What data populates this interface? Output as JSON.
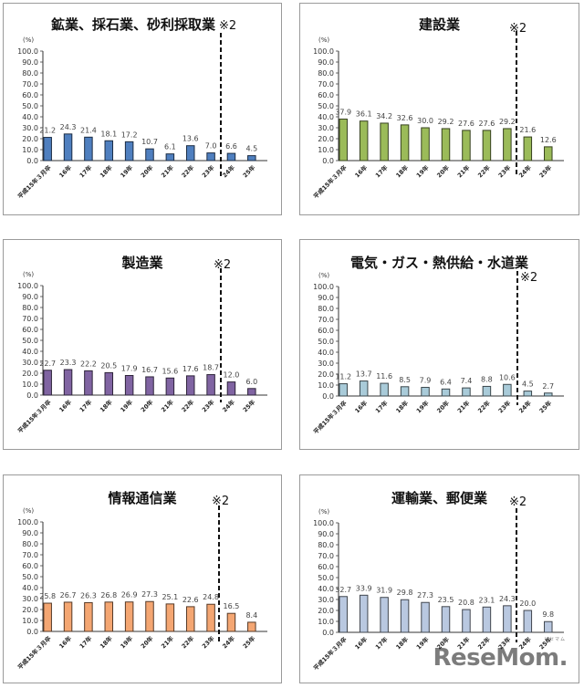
{
  "page": {
    "watermark": "ReseMom.",
    "watermark_ruby": "リセマム"
  },
  "chart_data": [
    {
      "id": "mining",
      "type": "bar",
      "title": "鉱業、採石業、砂利採取業",
      "annotation": "※2",
      "ylabel": "(%)",
      "xlabel": "",
      "ylim": [
        0,
        100
      ],
      "yticks": [
        "0.0",
        "10.0",
        "20.0",
        "30.0",
        "40.0",
        "50.0",
        "60.0",
        "70.0",
        "80.0",
        "90.0",
        "100.0"
      ],
      "categories": [
        "平成15年３月卒",
        "16年",
        "17年",
        "18年",
        "19年",
        "20年",
        "21年",
        "22年",
        "23年",
        "24年",
        "25年"
      ],
      "values": [
        21.2,
        24.3,
        21.4,
        18.1,
        17.2,
        10.7,
        6.1,
        13.6,
        7.0,
        6.6,
        4.5
      ],
      "labels": [
        "21.2",
        "24.3",
        "21.4",
        "18.1",
        "17.2",
        "10.7",
        "6.1",
        "13.6",
        "7.0",
        "6.6",
        "4.5"
      ],
      "divider_after_index": 8,
      "bar_color": "#4f7fbf",
      "grid": false,
      "legend": "none"
    },
    {
      "id": "construction",
      "type": "bar",
      "title": "建設業",
      "annotation": "※2",
      "ylabel": "(%)",
      "xlabel": "",
      "ylim": [
        0,
        100
      ],
      "yticks": [
        "0.0",
        "10.0",
        "20.0",
        "30.0",
        "40.0",
        "50.0",
        "60.0",
        "70.0",
        "80.0",
        "90.0",
        "100.0"
      ],
      "categories": [
        "平成15年３月卒",
        "16年",
        "17年",
        "18年",
        "19年",
        "20年",
        "21年",
        "22年",
        "23年",
        "24年",
        "25年"
      ],
      "values": [
        37.9,
        36.1,
        34.2,
        32.6,
        30.0,
        29.2,
        27.6,
        27.6,
        29.2,
        21.6,
        12.6
      ],
      "labels": [
        "37.9",
        "36.1",
        "34.2",
        "32.6",
        "30.0",
        "29.2",
        "27.6",
        "27.6",
        "29.2",
        "21.6",
        "12.6"
      ],
      "divider_after_index": 8,
      "bar_color": "#9bbb59",
      "grid": false,
      "legend": "none"
    },
    {
      "id": "manufacturing",
      "type": "bar",
      "title": "製造業",
      "annotation": "※2",
      "ylabel": "(%)",
      "xlabel": "",
      "ylim": [
        0,
        100
      ],
      "yticks": [
        "0.0",
        "10.0",
        "20.0",
        "30.0",
        "40.0",
        "50.0",
        "60.0",
        "70.0",
        "80.0",
        "90.0",
        "100.0"
      ],
      "categories": [
        "平成15年３月卒",
        "16年",
        "17年",
        "18年",
        "19年",
        "20年",
        "21年",
        "22年",
        "23年",
        "24年",
        "25年"
      ],
      "values": [
        22.7,
        23.3,
        22.2,
        20.5,
        17.9,
        16.7,
        15.6,
        17.6,
        18.7,
        12.0,
        6.0
      ],
      "labels": [
        "22.7",
        "23.3",
        "22.2",
        "20.5",
        "17.9",
        "16.7",
        "15.6",
        "17.6",
        "18.7",
        "12.0",
        "6.0"
      ],
      "divider_after_index": 8,
      "bar_color": "#8064a2",
      "grid": false,
      "legend": "none"
    },
    {
      "id": "utilities",
      "type": "bar",
      "title": "電気・ガス・熱供給・水道業",
      "annotation": "※2",
      "ylabel": "(%)",
      "xlabel": "",
      "ylim": [
        0,
        100
      ],
      "yticks": [
        "0.0",
        "10.0",
        "20.0",
        "30.0",
        "40.0",
        "50.0",
        "60.0",
        "70.0",
        "80.0",
        "90.0",
        "100.0"
      ],
      "categories": [
        "平成15年３月卒",
        "16年",
        "17年",
        "18年",
        "19年",
        "20年",
        "21年",
        "22年",
        "23年",
        "24年",
        "25年"
      ],
      "values": [
        11.2,
        13.7,
        11.6,
        8.5,
        7.9,
        6.4,
        7.4,
        8.8,
        10.6,
        4.5,
        2.7
      ],
      "labels": [
        "11.2",
        "13.7",
        "11.6",
        "8.5",
        "7.9",
        "6.4",
        "7.4",
        "8.8",
        "10.6",
        "4.5",
        "2.7"
      ],
      "divider_after_index": 8,
      "bar_color": "#a9cbd9",
      "grid": false,
      "legend": "none"
    },
    {
      "id": "information",
      "type": "bar",
      "title": "情報通信業",
      "annotation": "※2",
      "ylabel": "(%)",
      "xlabel": "",
      "ylim": [
        0,
        100
      ],
      "yticks": [
        "0.0",
        "10.0",
        "20.0",
        "30.0",
        "40.0",
        "50.0",
        "60.0",
        "70.0",
        "80.0",
        "90.0",
        "100.0"
      ],
      "categories": [
        "平成15年３月卒",
        "16年",
        "17年",
        "18年",
        "19年",
        "20年",
        "21年",
        "22年",
        "23年",
        "24年",
        "25年"
      ],
      "values": [
        25.8,
        26.7,
        26.3,
        26.8,
        26.9,
        27.3,
        25.1,
        22.6,
        24.8,
        16.5,
        8.4
      ],
      "labels": [
        "25.8",
        "26.7",
        "26.3",
        "26.8",
        "26.9",
        "27.3",
        "25.1",
        "22.6",
        "24.8",
        "16.5",
        "8.4"
      ],
      "divider_after_index": 8,
      "bar_color": "#f4a672",
      "grid": false,
      "legend": "none"
    },
    {
      "id": "transport",
      "type": "bar",
      "title": "運輸業、郵便業",
      "annotation": "※2",
      "ylabel": "(%)",
      "xlabel": "",
      "ylim": [
        0,
        100
      ],
      "yticks": [
        "0.0",
        "10.0",
        "20.0",
        "30.0",
        "40.0",
        "50.0",
        "60.0",
        "70.0",
        "80.0",
        "90.0",
        "100.0"
      ],
      "categories": [
        "平成15年３月卒",
        "16年",
        "17年",
        "18年",
        "19年",
        "20年",
        "21年",
        "22年",
        "23年",
        "24年",
        "25年"
      ],
      "values": [
        32.7,
        33.9,
        31.9,
        29.8,
        27.3,
        23.5,
        20.8,
        23.1,
        24.3,
        20.0,
        9.8
      ],
      "labels": [
        "32.7",
        "33.9",
        "31.9",
        "29.8",
        "27.3",
        "23.5",
        "20.8",
        "23.1",
        "24.3",
        "20.0",
        "9.8"
      ],
      "divider_after_index": 8,
      "bar_color": "#b9c8e0",
      "grid": false,
      "legend": "none"
    }
  ]
}
